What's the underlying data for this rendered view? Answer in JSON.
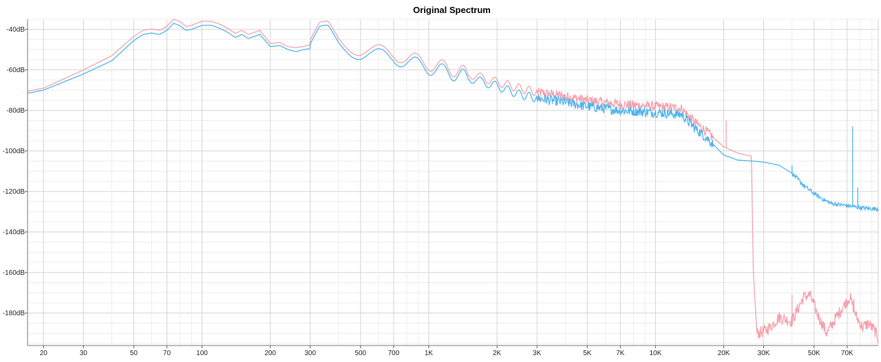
{
  "chart_data": {
    "type": "line",
    "title": "Original Spectrum",
    "xlabel": "",
    "ylabel": "",
    "x_scale": "log",
    "xlim": [
      17,
      96000
    ],
    "ylim": [
      -196,
      -35
    ],
    "grid": true,
    "legend": "none",
    "x_ticks": [
      {
        "value": 20,
        "label": "20"
      },
      {
        "value": 30,
        "label": "30"
      },
      {
        "value": 50,
        "label": "50"
      },
      {
        "value": 70,
        "label": "70"
      },
      {
        "value": 100,
        "label": "100"
      },
      {
        "value": 200,
        "label": "200"
      },
      {
        "value": 300,
        "label": "300"
      },
      {
        "value": 500,
        "label": "500"
      },
      {
        "value": 700,
        "label": "700"
      },
      {
        "value": 1000,
        "label": "1K"
      },
      {
        "value": 2000,
        "label": "2K"
      },
      {
        "value": 3000,
        "label": "3K"
      },
      {
        "value": 5000,
        "label": "5K"
      },
      {
        "value": 7000,
        "label": "7K"
      },
      {
        "value": 10000,
        "label": "10K"
      },
      {
        "value": 20000,
        "label": "20K"
      },
      {
        "value": 30000,
        "label": "30K"
      },
      {
        "value": 50000,
        "label": "50K"
      },
      {
        "value": 70000,
        "label": "70K"
      }
    ],
    "y_ticks": [
      {
        "value": -40,
        "label": "-40dB"
      },
      {
        "value": -60,
        "label": "-60dB"
      },
      {
        "value": -80,
        "label": "-80dB"
      },
      {
        "value": -100,
        "label": "-100dB"
      },
      {
        "value": -120,
        "label": "-120dB"
      },
      {
        "value": -140,
        "label": "-140dB"
      },
      {
        "value": -160,
        "label": "-160dB"
      },
      {
        "value": -180,
        "label": "-180dB"
      }
    ],
    "series": [
      {
        "color": "#f4a0ac",
        "points": [
          [
            17,
            -70.5
          ],
          [
            20,
            -69
          ],
          [
            30,
            -60
          ],
          [
            40,
            -53
          ],
          [
            50,
            -43.5
          ],
          [
            55,
            -40.5
          ],
          [
            60,
            -39.8
          ],
          [
            65,
            -40.5
          ],
          [
            70,
            -38.5
          ],
          [
            75,
            -35
          ],
          [
            80,
            -36.2
          ],
          [
            85,
            -38.5
          ],
          [
            90,
            -38
          ],
          [
            100,
            -36
          ],
          [
            110,
            -36
          ],
          [
            120,
            -37.5
          ],
          [
            130,
            -39.5
          ],
          [
            140,
            -42
          ],
          [
            150,
            -40.5
          ],
          [
            160,
            -42.5
          ],
          [
            180,
            -40.5
          ],
          [
            200,
            -47
          ],
          [
            220,
            -46.5
          ],
          [
            240,
            -48.5
          ],
          [
            260,
            -49
          ],
          [
            280,
            -48.5
          ],
          [
            300,
            -47.5
          ],
          [
            330,
            -40
          ],
          [
            360,
            -39
          ],
          [
            400,
            -45
          ],
          [
            450,
            -48
          ],
          [
            500,
            -50
          ],
          [
            600,
            -51
          ],
          [
            700,
            -52
          ],
          [
            800,
            -54
          ],
          [
            1000,
            -57
          ],
          [
            1200,
            -59
          ],
          [
            1500,
            -62
          ],
          [
            2000,
            -66
          ],
          [
            2500,
            -69
          ],
          [
            3000,
            -71
          ],
          [
            4000,
            -73
          ],
          [
            5000,
            -75
          ],
          [
            7000,
            -77
          ],
          [
            10000,
            -78
          ],
          [
            13000,
            -79
          ],
          [
            15000,
            -86
          ],
          [
            17000,
            -91
          ],
          [
            20000,
            -98
          ],
          [
            23000,
            -101
          ],
          [
            25000,
            -102
          ],
          [
            26500,
            -102.5
          ],
          [
            27000,
            -160
          ],
          [
            28000,
            -190
          ],
          [
            30000,
            -189
          ],
          [
            32000,
            -187
          ],
          [
            35000,
            -182
          ],
          [
            40000,
            -184
          ],
          [
            45000,
            -172
          ],
          [
            48000,
            -171
          ],
          [
            52000,
            -181
          ],
          [
            57000,
            -190
          ],
          [
            62000,
            -183
          ],
          [
            67000,
            -177
          ],
          [
            72000,
            -172
          ],
          [
            77000,
            -182
          ],
          [
            82000,
            -187
          ],
          [
            87000,
            -185
          ],
          [
            93000,
            -189
          ],
          [
            96000,
            -193
          ]
        ],
        "spikes": [
          [
            20500,
            -85
          ],
          [
            40000,
            -171
          ],
          [
            75000,
            -173
          ]
        ]
      },
      {
        "color": "#4db3ee",
        "points": [
          [
            17,
            -71.5
          ],
          [
            20,
            -70
          ],
          [
            30,
            -62
          ],
          [
            40,
            -55.5
          ],
          [
            50,
            -45.5
          ],
          [
            55,
            -42.5
          ],
          [
            60,
            -41.8
          ],
          [
            65,
            -42.5
          ],
          [
            70,
            -40.5
          ],
          [
            75,
            -37
          ],
          [
            80,
            -38.2
          ],
          [
            85,
            -40.5
          ],
          [
            90,
            -40
          ],
          [
            100,
            -38
          ],
          [
            110,
            -38
          ],
          [
            120,
            -39.5
          ],
          [
            130,
            -41.5
          ],
          [
            140,
            -44
          ],
          [
            150,
            -42.5
          ],
          [
            160,
            -44.5
          ],
          [
            180,
            -42.5
          ],
          [
            200,
            -48.5
          ],
          [
            220,
            -48
          ],
          [
            240,
            -50
          ],
          [
            260,
            -51
          ],
          [
            280,
            -50
          ],
          [
            300,
            -49.5
          ],
          [
            330,
            -42
          ],
          [
            360,
            -41
          ],
          [
            400,
            -47
          ],
          [
            450,
            -50
          ],
          [
            500,
            -52
          ],
          [
            600,
            -53
          ],
          [
            700,
            -54
          ],
          [
            800,
            -56
          ],
          [
            1000,
            -59
          ],
          [
            1200,
            -61
          ],
          [
            1500,
            -64
          ],
          [
            2000,
            -68
          ],
          [
            2500,
            -72
          ],
          [
            3000,
            -74
          ],
          [
            4000,
            -76
          ],
          [
            5000,
            -78
          ],
          [
            7000,
            -80
          ],
          [
            10000,
            -81
          ],
          [
            13000,
            -82
          ],
          [
            15000,
            -89
          ],
          [
            17000,
            -94
          ],
          [
            20000,
            -102
          ],
          [
            23000,
            -104.5
          ],
          [
            27000,
            -105
          ],
          [
            30000,
            -105.5
          ],
          [
            35000,
            -107
          ],
          [
            40000,
            -111
          ],
          [
            45000,
            -117
          ],
          [
            50000,
            -121
          ],
          [
            55000,
            -124
          ],
          [
            60000,
            -126
          ],
          [
            70000,
            -127
          ],
          [
            80000,
            -128
          ],
          [
            90000,
            -128.5
          ],
          [
            96000,
            -128.5
          ]
        ],
        "spikes": [
          [
            40000,
            -107
          ],
          [
            74000,
            -88
          ],
          [
            78000,
            -118
          ]
        ]
      }
    ]
  }
}
